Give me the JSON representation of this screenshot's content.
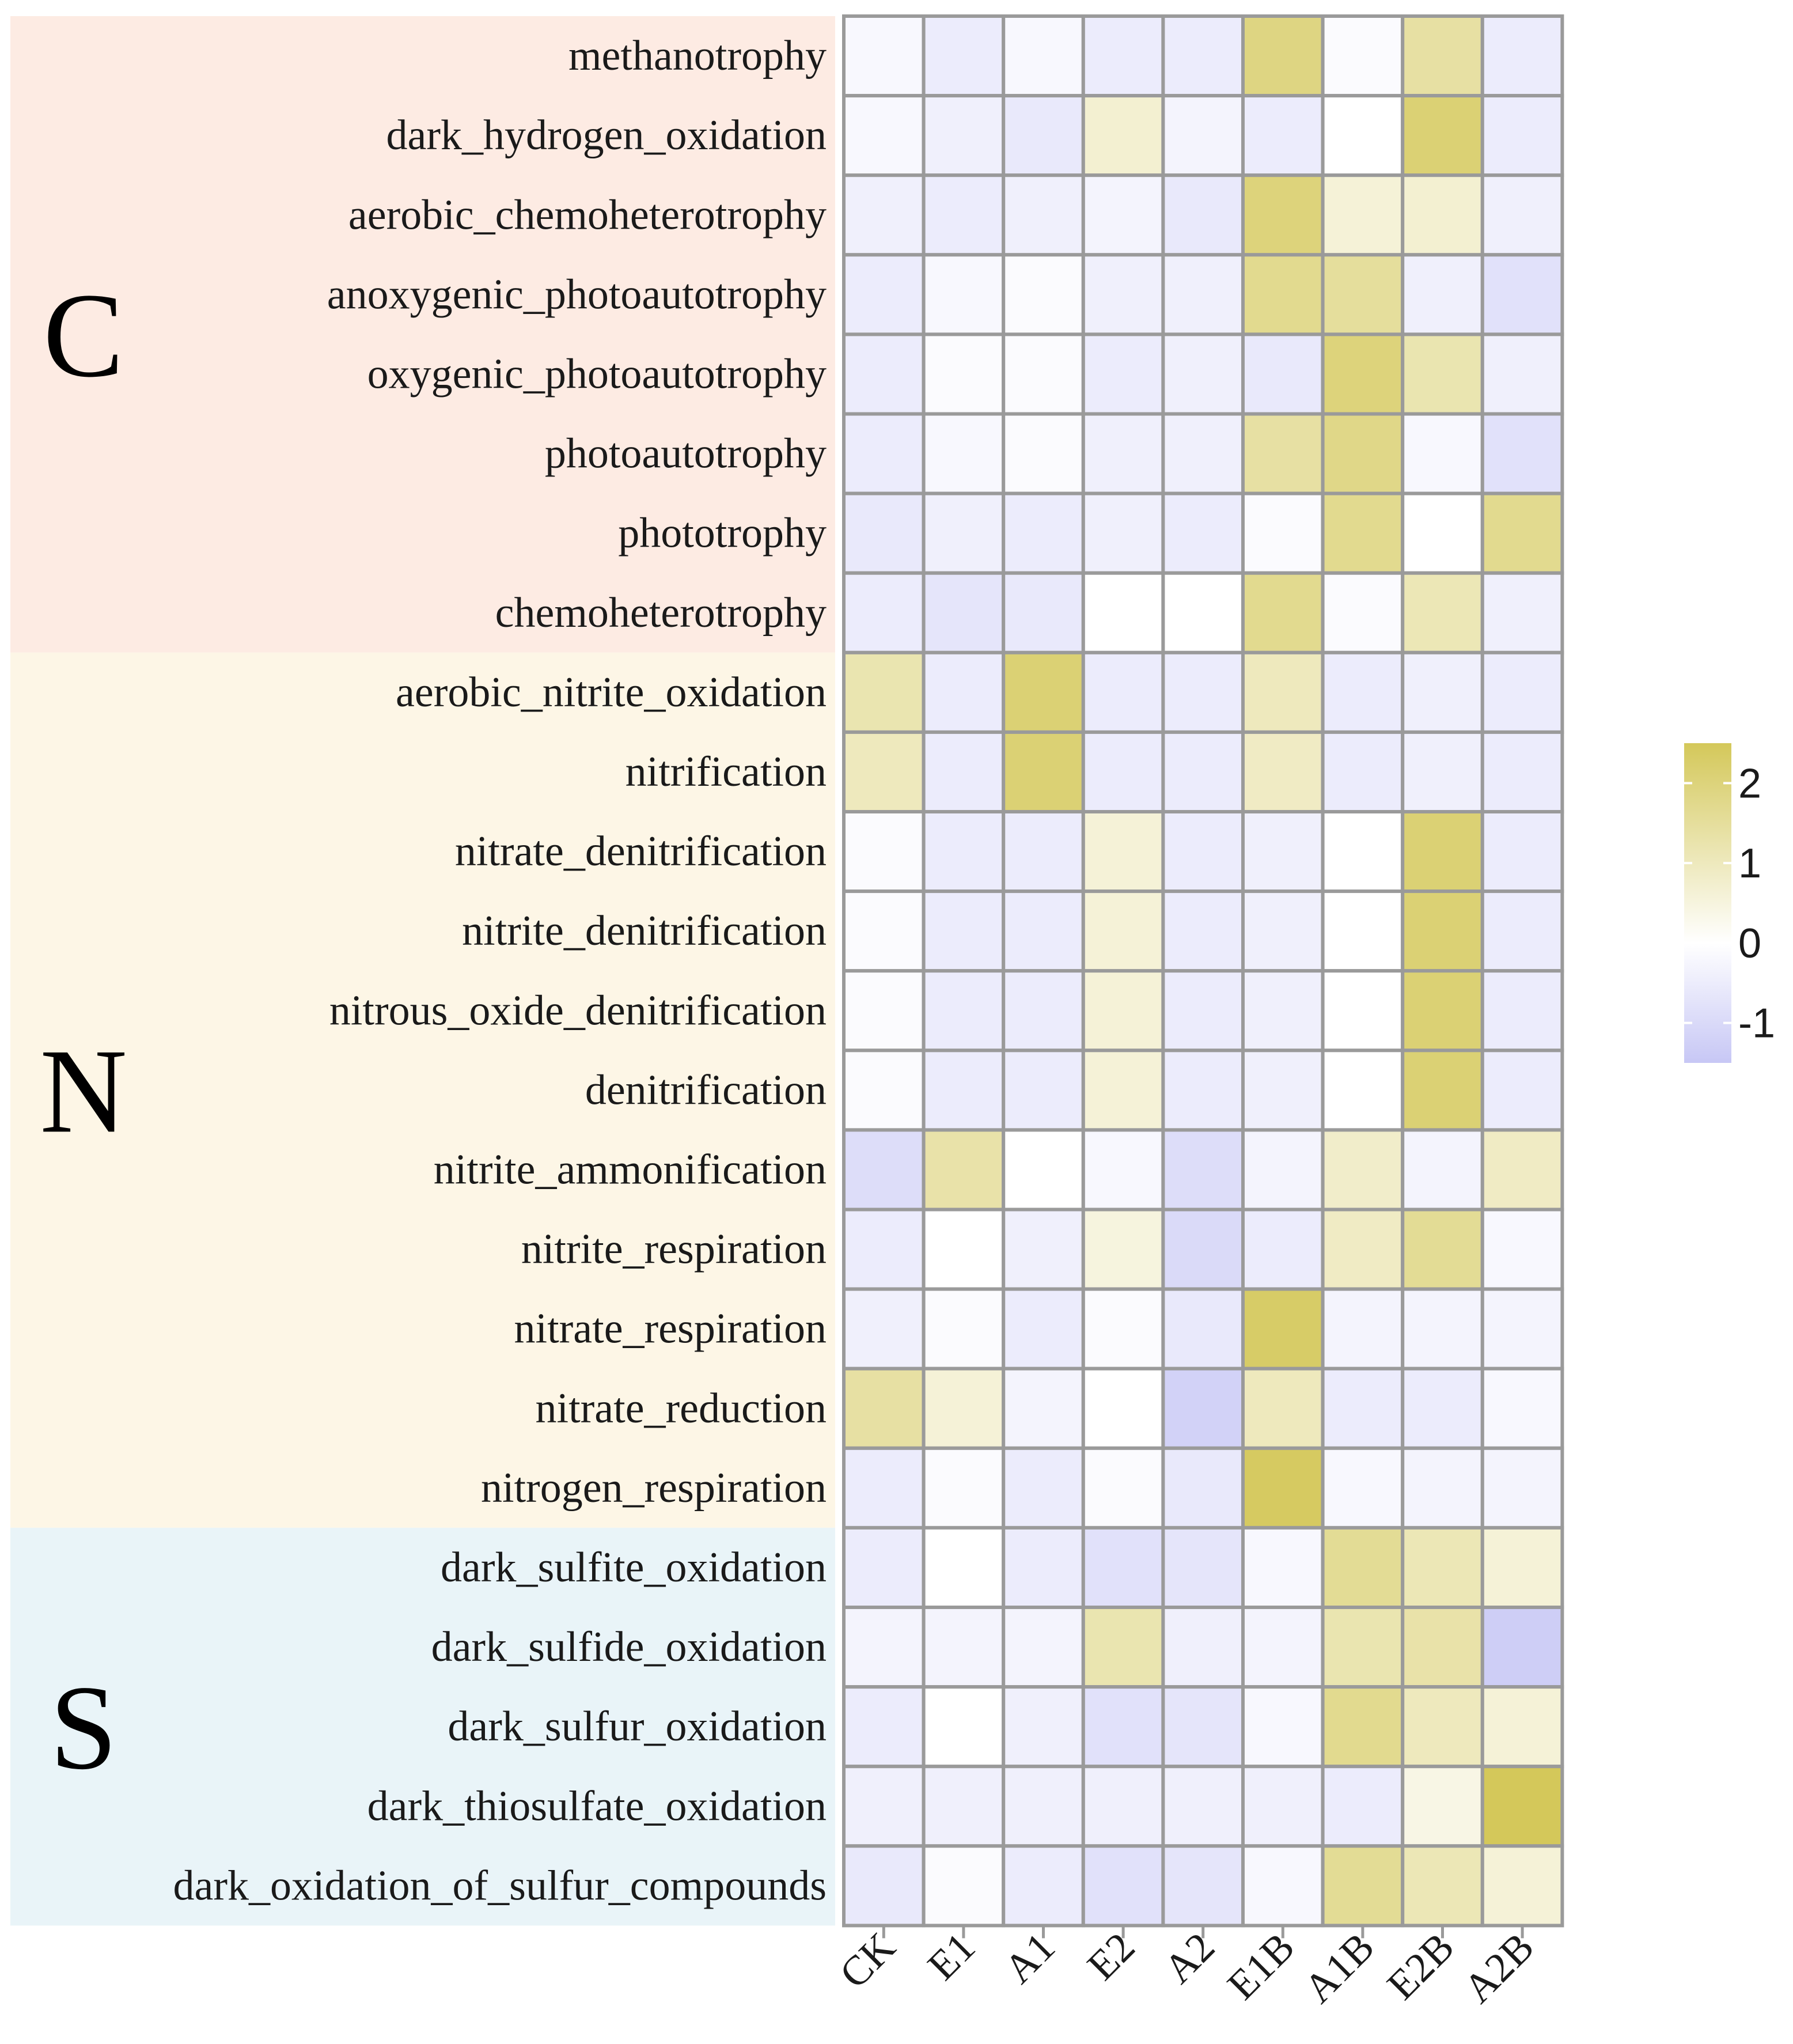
{
  "chart_data": {
    "type": "heatmap",
    "columns": [
      "CK",
      "E1",
      "A1",
      "E2",
      "A2",
      "E1B",
      "A1B",
      "E2B",
      "A2B"
    ],
    "rows": [
      "methanotrophy",
      "dark_hydrogen_oxidation",
      "aerobic_chemoheterotrophy",
      "anoxygenic_photoautotrophy",
      "oxygenic_photoautotrophy",
      "photoautotrophy",
      "phototrophy",
      "chemoheterotrophy",
      "aerobic_nitrite_oxidation",
      "nitrification",
      "nitrate_denitrification",
      "nitrite_denitrification",
      "nitrous_oxide_denitrification",
      "denitrification",
      "nitrite_ammonification",
      "nitrite_respiration",
      "nitrate_respiration",
      "nitrate_reduction",
      "nitrogen_respiration",
      "dark_sulfite_oxidation",
      "dark_sulfide_oxidation",
      "dark_sulfur_oxidation",
      "dark_thiosulfate_oxidation",
      "dark_oxidation_of_sulfur_compounds"
    ],
    "values": [
      [
        -0.2,
        -0.5,
        -0.2,
        -0.5,
        -0.5,
        1.9,
        -0.1,
        1.4,
        -0.5
      ],
      [
        -0.2,
        -0.4,
        -0.6,
        0.7,
        -0.3,
        -0.5,
        0.0,
        2.1,
        -0.5
      ],
      [
        -0.4,
        -0.5,
        -0.4,
        -0.3,
        -0.6,
        2.0,
        0.6,
        0.7,
        -0.4
      ],
      [
        -0.5,
        -0.2,
        -0.1,
        -0.4,
        -0.4,
        1.7,
        1.5,
        -0.4,
        -0.8
      ],
      [
        -0.5,
        -0.1,
        -0.1,
        -0.5,
        -0.4,
        -0.6,
        2.0,
        1.2,
        -0.4
      ],
      [
        -0.5,
        -0.2,
        -0.1,
        -0.4,
        -0.4,
        1.4,
        1.8,
        -0.2,
        -0.8
      ],
      [
        -0.6,
        -0.4,
        -0.5,
        -0.4,
        -0.5,
        -0.1,
        1.7,
        0.0,
        1.7
      ],
      [
        -0.5,
        -0.7,
        -0.6,
        0.0,
        0.0,
        1.7,
        -0.1,
        1.1,
        -0.4
      ],
      [
        1.2,
        -0.5,
        2.1,
        -0.5,
        -0.5,
        1.0,
        -0.5,
        -0.4,
        -0.5
      ],
      [
        1.0,
        -0.5,
        2.1,
        -0.5,
        -0.5,
        0.9,
        -0.5,
        -0.4,
        -0.5
      ],
      [
        -0.1,
        -0.5,
        -0.5,
        0.6,
        -0.5,
        -0.4,
        0.0,
        2.1,
        -0.5
      ],
      [
        -0.1,
        -0.5,
        -0.5,
        0.6,
        -0.5,
        -0.4,
        0.0,
        2.1,
        -0.5
      ],
      [
        -0.1,
        -0.5,
        -0.5,
        0.6,
        -0.5,
        -0.4,
        0.0,
        2.1,
        -0.5
      ],
      [
        -0.1,
        -0.5,
        -0.5,
        0.6,
        -0.5,
        -0.4,
        0.0,
        2.1,
        -0.5
      ],
      [
        -0.9,
        1.3,
        0.0,
        -0.2,
        -0.9,
        -0.3,
        0.8,
        -0.3,
        0.9
      ],
      [
        -0.5,
        0.0,
        -0.4,
        0.5,
        -1.0,
        -0.5,
        0.9,
        1.6,
        -0.2
      ],
      [
        -0.4,
        -0.1,
        -0.5,
        -0.1,
        -0.6,
        2.3,
        -0.3,
        -0.3,
        -0.3
      ],
      [
        1.4,
        0.6,
        -0.3,
        0.0,
        -1.2,
        1.0,
        -0.5,
        -0.5,
        -0.2
      ],
      [
        -0.5,
        -0.1,
        -0.5,
        -0.1,
        -0.6,
        2.4,
        -0.2,
        -0.3,
        -0.3
      ],
      [
        -0.5,
        0.0,
        -0.5,
        -0.8,
        -0.7,
        -0.2,
        1.6,
        1.1,
        0.6
      ],
      [
        -0.3,
        -0.3,
        -0.3,
        1.2,
        -0.4,
        -0.3,
        1.2,
        1.3,
        -1.3
      ],
      [
        -0.5,
        0.0,
        -0.4,
        -0.8,
        -0.7,
        -0.2,
        1.7,
        1.0,
        0.6
      ],
      [
        -0.4,
        -0.4,
        -0.4,
        -0.4,
        -0.4,
        -0.4,
        -0.5,
        0.4,
        2.5
      ],
      [
        -0.6,
        -0.1,
        -0.5,
        -0.8,
        -0.7,
        -0.2,
        1.6,
        1.1,
        0.6
      ]
    ],
    "groups": [
      {
        "label": "C",
        "start": 0,
        "end": 7,
        "color": "#fdebe3"
      },
      {
        "label": "N",
        "start": 8,
        "end": 18,
        "color": "#fdf6e6"
      },
      {
        "label": "S",
        "start": 19,
        "end": 23,
        "color": "#e9f4f8"
      }
    ],
    "color_scale": {
      "low_color": "#c7c7f5",
      "mid_color": "#ffffff",
      "high_color": "#d4c85a",
      "min": -1.5,
      "mid": 0,
      "max": 2.5
    },
    "legend": {
      "ticks": [
        2,
        1,
        0,
        -1
      ],
      "tick_labels": [
        "2",
        "1",
        "0",
        "-1"
      ],
      "placement": "right"
    }
  }
}
